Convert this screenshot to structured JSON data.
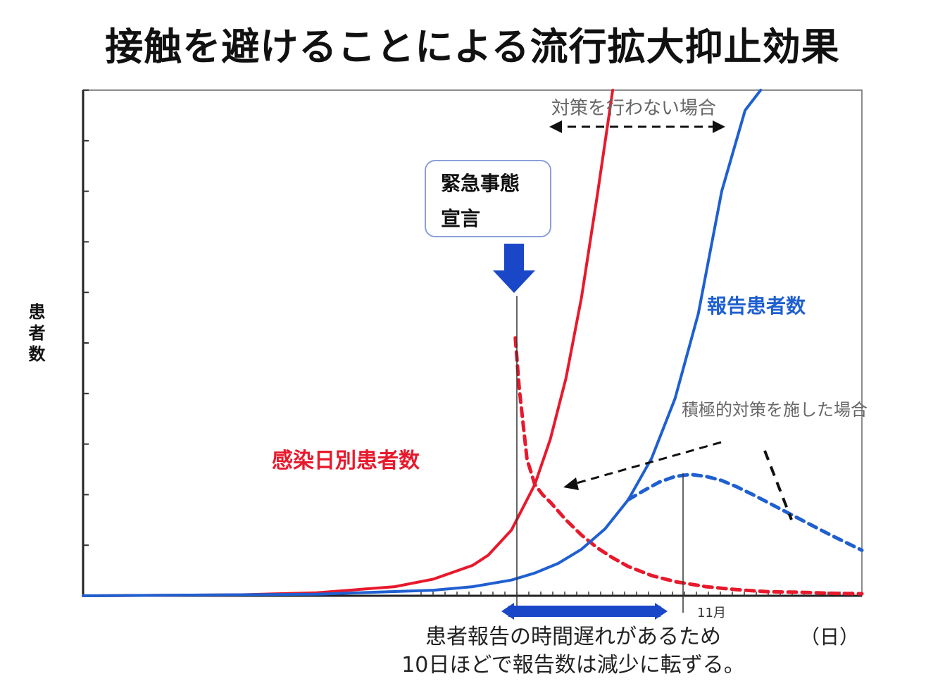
{
  "title": "接触を避けることによる流行拡大抑止効果",
  "colors": {
    "red": "#e8192c",
    "blue": "#1f5fd0",
    "dark_blue": "#1a47c8",
    "axis": "#333333",
    "annotation": "#555555"
  },
  "chart_data": {
    "type": "line",
    "title": "接触を避けることによる流行拡大抑止効果",
    "ylabel": "患者数",
    "xlabel": "（日）",
    "x_axis_note": "11月",
    "ylim": [
      0,
      100
    ],
    "xlim": [
      0,
      100
    ],
    "series": [
      {
        "name": "感染日別患者数",
        "color": "#e8192c",
        "style": "solid",
        "x": [
          0,
          20,
          30,
          40,
          45,
          50,
          52,
          55,
          58,
          60,
          62,
          64,
          66,
          68
        ],
        "y": [
          0.0,
          0.2,
          0.6,
          1.8,
          3.3,
          6.0,
          8.0,
          13.0,
          22.0,
          31.0,
          43.0,
          59.0,
          79.0,
          100.0
        ]
      },
      {
        "name": "感染日別患者数（積極的対策）",
        "color": "#e8192c",
        "style": "dashed",
        "x": [
          55.5,
          56,
          57,
          58,
          59,
          60,
          62,
          64,
          66,
          68,
          70,
          73,
          76,
          80,
          84,
          88,
          92,
          96,
          100
        ],
        "y": [
          51.0,
          41.0,
          27.0,
          22.0,
          20.0,
          18.5,
          15.0,
          12.0,
          9.5,
          7.5,
          5.8,
          4.0,
          2.8,
          1.8,
          1.2,
          0.8,
          0.7,
          0.5,
          0.4
        ]
      },
      {
        "name": "報告患者数",
        "color": "#1f5fd0",
        "style": "solid",
        "x": [
          0,
          30,
          45,
          50,
          55,
          58,
          61,
          64,
          67,
          70,
          73,
          76,
          79,
          82,
          85,
          87
        ],
        "y": [
          0.0,
          0.3,
          1.1,
          1.8,
          3.1,
          4.5,
          6.4,
          9.2,
          13.2,
          19.0,
          27.2,
          39.0,
          55.8,
          80.0,
          96.0,
          100.0
        ]
      },
      {
        "name": "報告患者数（積極的対策）",
        "color": "#1f5fd0",
        "style": "dashed",
        "x": [
          70,
          72,
          74,
          76,
          78,
          80,
          82,
          84,
          86,
          88,
          90,
          92,
          94,
          96,
          98,
          100
        ],
        "y": [
          19.0,
          20.8,
          22.5,
          23.6,
          24.0,
          23.6,
          22.8,
          21.5,
          20.0,
          18.4,
          16.8,
          15.2,
          13.6,
          12.0,
          10.5,
          9.0
        ]
      }
    ],
    "labels": {
      "red_series": "感染日別患者数",
      "blue_series": "報告患者数"
    },
    "annotations": {
      "no_measures": "対策を行わない場合",
      "with_measures": "積極的対策を施した場合",
      "declaration_line1": "緊急事態",
      "declaration_line2": "宣言",
      "delay_note_line1": "患者報告の時間遅れがあるため",
      "delay_note_line2": "10日ほどで報告数は減少に転ずる。"
    },
    "grid": false
  }
}
